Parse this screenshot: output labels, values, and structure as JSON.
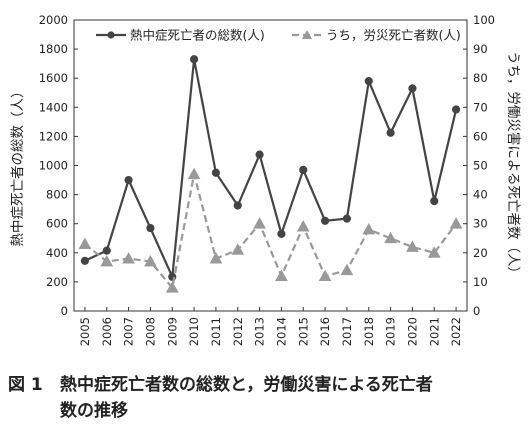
{
  "chart_data": {
    "type": "line",
    "categories": [
      "2005",
      "2006",
      "2007",
      "2008",
      "2009",
      "2010",
      "2011",
      "2012",
      "2013",
      "2014",
      "2015",
      "2016",
      "2017",
      "2018",
      "2019",
      "2020",
      "2021",
      "2022"
    ],
    "series": [
      {
        "name": "熱中症死亡者の総数(人)",
        "axis": "left",
        "style": "solid",
        "marker": "circle",
        "color": "#444444",
        "values": [
          345,
          415,
          900,
          570,
          235,
          1730,
          950,
          725,
          1075,
          530,
          970,
          620,
          635,
          1580,
          1225,
          1530,
          755,
          1385
        ]
      },
      {
        "name": "うち，労災死亡者数(人)",
        "axis": "right",
        "style": "dashed",
        "marker": "triangle",
        "color": "#999999",
        "values": [
          23,
          17,
          18,
          17,
          8,
          47,
          18,
          21,
          30,
          12,
          29,
          12,
          14,
          28,
          25,
          22,
          20,
          30
        ]
      }
    ],
    "y_left": {
      "label": "熱中症死亡者の総数（人）",
      "lim": [
        0,
        2000
      ],
      "ticks": [
        "0",
        "200",
        "400",
        "600",
        "800",
        "1000",
        "1200",
        "1400",
        "1600",
        "1800",
        "2000"
      ]
    },
    "y_right": {
      "label": "うち，労働災害による死亡者数（人）",
      "lim": [
        0,
        100
      ],
      "ticks": [
        "0",
        "10",
        "20",
        "30",
        "40",
        "50",
        "60",
        "70",
        "80",
        "90",
        "100"
      ]
    },
    "grid": false,
    "legend_position": "top"
  },
  "caption": {
    "figure_label": "図 1",
    "line1": "熱中症死亡者数の総数と，労働災害による死亡者",
    "line2": "数の推移"
  }
}
